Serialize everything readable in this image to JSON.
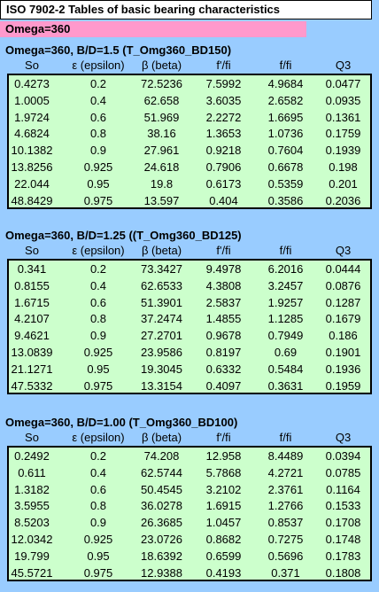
{
  "header": {
    "title": "ISO 7902-2 Tables of basic bearing characteristics",
    "subtitle": "Omega=360"
  },
  "sections": [
    {
      "title": "Omega=360, B/D=1.5 (T_Omg360_BD150)",
      "columns": [
        "So",
        "ε (epsilon)",
        "β (beta)",
        "f'/fi",
        "f/fi",
        "Q3"
      ],
      "rows": [
        [
          "0.4273",
          "0.2",
          "72.5236",
          "7.5992",
          "4.9684",
          "0.0477"
        ],
        [
          "1.0005",
          "0.4",
          "62.658",
          "3.6035",
          "2.6582",
          "0.0935"
        ],
        [
          "1.9724",
          "0.6",
          "51.969",
          "2.2272",
          "1.6695",
          "0.1361"
        ],
        [
          "4.6824",
          "0.8",
          "38.16",
          "1.3653",
          "1.0736",
          "0.1759"
        ],
        [
          "10.1382",
          "0.9",
          "27.961",
          "0.9218",
          "0.7604",
          "0.1939"
        ],
        [
          "13.8256",
          "0.925",
          "24.618",
          "0.7906",
          "0.6678",
          "0.198"
        ],
        [
          "22.044",
          "0.95",
          "19.8",
          "0.6173",
          "0.5359",
          "0.201"
        ],
        [
          "48.8429",
          "0.975",
          "13.597",
          "0.404",
          "0.3586",
          "0.2036"
        ]
      ]
    },
    {
      "title": "Omega=360, B/D=1.25 ((T_Omg360_BD125)",
      "columns": [
        "So",
        "ε (epsilon)",
        "β (beta)",
        "f'/fi",
        "f/fi",
        "Q3"
      ],
      "rows": [
        [
          "0.341",
          "0.2",
          "73.3427",
          "9.4978",
          "6.2016",
          "0.0444"
        ],
        [
          "0.8155",
          "0.4",
          "62.6533",
          "4.3808",
          "3.2457",
          "0.0876"
        ],
        [
          "1.6715",
          "0.6",
          "51.3901",
          "2.5837",
          "1.9257",
          "0.1287"
        ],
        [
          "4.2107",
          "0.8",
          "37.2474",
          "1.4855",
          "1.1285",
          "0.1679"
        ],
        [
          "9.4621",
          "0.9",
          "27.2701",
          "0.9678",
          "0.7949",
          "0.186"
        ],
        [
          "13.0839",
          "0.925",
          "23.9586",
          "0.8197",
          "0.69",
          "0.1901"
        ],
        [
          "21.1271",
          "0.95",
          "19.3045",
          "0.6332",
          "0.5484",
          "0.1936"
        ],
        [
          "47.5332",
          "0.975",
          "13.3154",
          "0.4097",
          "0.3631",
          "0.1959"
        ]
      ]
    },
    {
      "title": "Omega=360, B/D=1.00 (T_Omg360_BD100)",
      "columns": [
        "So",
        "ε (epsilon)",
        "β (beta)",
        "f'/fi",
        "f/fi",
        "Q3"
      ],
      "rows": [
        [
          "0.2492",
          "0.2",
          "74.208",
          "12.958",
          "8.4489",
          "0.0394"
        ],
        [
          "0.611",
          "0.4",
          "62.5744",
          "5.7868",
          "4.2721",
          "0.0785"
        ],
        [
          "1.3182",
          "0.6",
          "50.4545",
          "3.2102",
          "2.3761",
          "0.1164"
        ],
        [
          "3.5955",
          "0.8",
          "36.0278",
          "1.6915",
          "1.2766",
          "0.1533"
        ],
        [
          "8.5203",
          "0.9",
          "26.3685",
          "1.0457",
          "0.8537",
          "0.1708"
        ],
        [
          "12.0342",
          "0.925",
          "23.0726",
          "0.8682",
          "0.7275",
          "0.1748"
        ],
        [
          "19.799",
          "0.95",
          "18.6392",
          "0.6599",
          "0.5696",
          "0.1783"
        ],
        [
          "45.5721",
          "0.975",
          "12.9388",
          "0.4193",
          "0.371",
          "0.1808"
        ]
      ]
    }
  ]
}
